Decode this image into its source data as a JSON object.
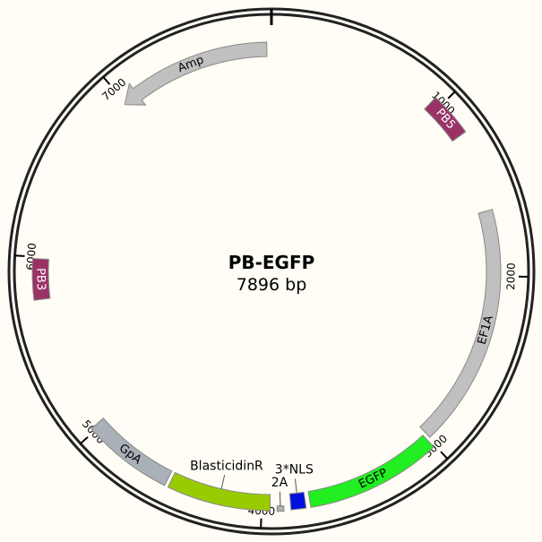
{
  "plasmid": {
    "name": "PB-EGFP",
    "length_label": "7896 bp",
    "length_bp": 7896
  },
  "ticks": [
    {
      "bp": 1000,
      "label": "1000"
    },
    {
      "bp": 2000,
      "label": "2000"
    },
    {
      "bp": 3000,
      "label": "3000"
    },
    {
      "bp": 4000,
      "label": "4000"
    },
    {
      "bp": 5000,
      "label": "5000"
    },
    {
      "bp": 6000,
      "label": "6000"
    },
    {
      "bp": 7000,
      "label": "7000"
    }
  ],
  "features": [
    {
      "id": "pb5",
      "label": "PB5",
      "start_bp": 950,
      "end_bp": 1190,
      "color": "#993366",
      "label_color": "#ffffff",
      "ring": "outer",
      "arrow": false,
      "label_inside": true
    },
    {
      "id": "ef1a",
      "label": "EF1A",
      "start_bp": 1630,
      "end_bp": 2990,
      "color": "#c0c0c0",
      "label_color": "#000000",
      "ring": "inner",
      "arrow": false,
      "label_inside": true
    },
    {
      "id": "egfp",
      "label": "EGFP",
      "start_bp": 3010,
      "end_bp": 3740,
      "color": "#22ee22",
      "label_color": "#000000",
      "ring": "outer",
      "arrow": false,
      "label_inside": true
    },
    {
      "id": "nls",
      "label": "3*NLS",
      "start_bp": 3765,
      "end_bp": 3845,
      "color": "#0011dd",
      "label_color": "#000000",
      "ring": "outer",
      "arrow": false,
      "label_inside": false
    },
    {
      "id": "twoa",
      "label": "2A",
      "start_bp": 3882,
      "end_bp": 3918,
      "color": "#b0b0b0",
      "label_color": "#000000",
      "ring": "tiny",
      "arrow": false,
      "label_inside": false
    },
    {
      "id": "blasticidin",
      "label": "BlasticidinR",
      "start_bp": 3955,
      "end_bp": 4510,
      "color": "#99cc00",
      "label_color": "#000000",
      "ring": "outer",
      "arrow": false,
      "label_inside": false
    },
    {
      "id": "gpa",
      "label": "GpA",
      "start_bp": 4530,
      "end_bp": 5020,
      "color": "#aab0b8",
      "label_color": "#000000",
      "ring": "outer",
      "arrow": false,
      "label_inside": true
    },
    {
      "id": "pb3",
      "label": "PB3",
      "start_bp": 5770,
      "end_bp": 5990,
      "color": "#993366",
      "label_color": "#ffffff",
      "ring": "outer",
      "arrow": false,
      "label_inside": true
    },
    {
      "id": "amp",
      "label": "Amp",
      "start_bp": 6990,
      "end_bp": 7870,
      "color": "#c0c0c0",
      "label_color": "#000000",
      "ring": "inner",
      "arrow": true,
      "label_inside": true
    }
  ]
}
